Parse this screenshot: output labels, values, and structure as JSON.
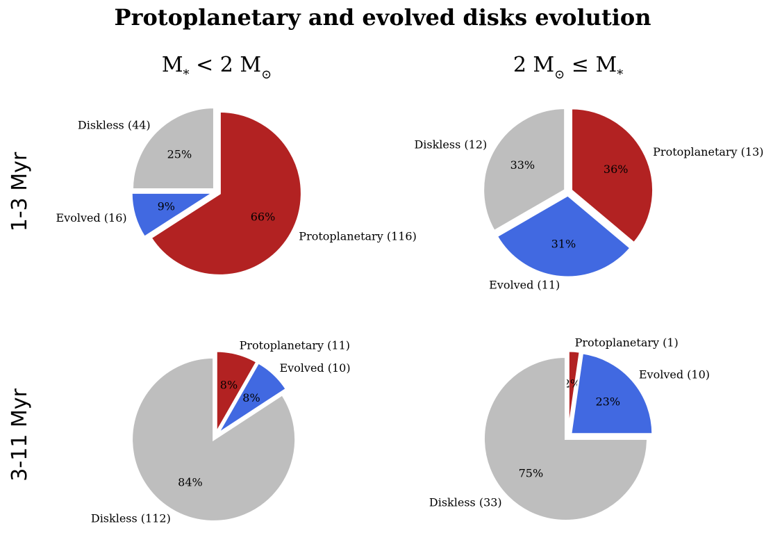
{
  "title": "Protoplanetary and evolved disks evolution",
  "columns": [
    {
      "base": "M",
      "sub1": "*",
      "mid": " < 2 M",
      "sub2": "⊙"
    },
    {
      "base": "2 M",
      "sub1": "⊙",
      "mid": " ≤ M",
      "sub2": "*"
    }
  ],
  "rows": [
    "1-3 Myr",
    "3-11 Myr"
  ],
  "colors": {
    "Protoplanetary": "#b22222",
    "Evolved": "#4169e1",
    "Diskless": "#bebebe"
  },
  "chart_data": [
    {
      "type": "pie",
      "row": "1-3 Myr",
      "column": "M* < 2 M⊙",
      "slices": [
        {
          "name": "Protoplanetary",
          "value": 116,
          "label": "Protoplanetary (116)",
          "pct": "66%"
        },
        {
          "name": "Evolved",
          "value": 16,
          "label": "Evolved (16)",
          "pct": "9%"
        },
        {
          "name": "Diskless",
          "value": 44,
          "label": "Diskless (44)",
          "pct": "25%"
        }
      ]
    },
    {
      "type": "pie",
      "row": "1-3 Myr",
      "column": "2 M⊙ ≤ M*",
      "slices": [
        {
          "name": "Protoplanetary",
          "value": 13,
          "label": "Protoplanetary (13)",
          "pct": "36%"
        },
        {
          "name": "Evolved",
          "value": 11,
          "label": "Evolved (11)",
          "pct": "31%"
        },
        {
          "name": "Diskless",
          "value": 12,
          "label": "Diskless (12)",
          "pct": "33%"
        }
      ]
    },
    {
      "type": "pie",
      "row": "3-11 Myr",
      "column": "M* < 2 M⊙",
      "slices": [
        {
          "name": "Protoplanetary",
          "value": 11,
          "label": "Protoplanetary (11)",
          "pct": "8%"
        },
        {
          "name": "Evolved",
          "value": 10,
          "label": "Evolved (10)",
          "pct": "8%"
        },
        {
          "name": "Diskless",
          "value": 112,
          "label": "Diskless (112)",
          "pct": "84%"
        }
      ]
    },
    {
      "type": "pie",
      "row": "3-11 Myr",
      "column": "2 M⊙ ≤ M*",
      "slices": [
        {
          "name": "Protoplanetary",
          "value": 1,
          "label": "Protoplanetary (1)",
          "pct": "2%"
        },
        {
          "name": "Evolved",
          "value": 10,
          "label": "Evolved (10)",
          "pct": "23%"
        },
        {
          "name": "Diskless",
          "value": 33,
          "label": "Diskless (33)",
          "pct": "75%"
        }
      ]
    }
  ]
}
